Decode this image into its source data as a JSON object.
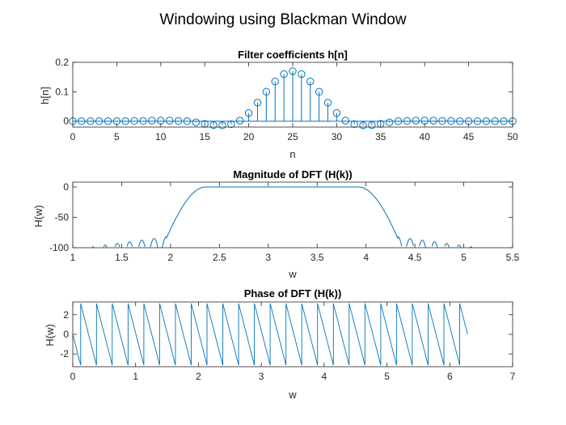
{
  "figure": {
    "title": "Windowing using Blackman Window"
  },
  "colors": {
    "series": "#0072bd",
    "axis": "#262626",
    "background": "#ffffff"
  },
  "chart_data": [
    {
      "type": "stem",
      "title": "Filter coefficients h[n]",
      "xlabel": "n",
      "ylabel": "h[n]",
      "xlim": [
        0,
        50
      ],
      "ylim": [
        -0.02,
        0.2
      ],
      "xticks": [
        0,
        5,
        10,
        15,
        20,
        25,
        30,
        35,
        40,
        45,
        50
      ],
      "yticks": [
        0,
        0.1,
        0.2
      ],
      "ytick_labels": [
        "0",
        "0.1",
        "0.2"
      ],
      "x": [
        0,
        1,
        2,
        3,
        4,
        5,
        6,
        7,
        8,
        9,
        10,
        11,
        12,
        13,
        14,
        15,
        16,
        17,
        18,
        19,
        20,
        21,
        22,
        23,
        24,
        25,
        26,
        27,
        28,
        29,
        30,
        31,
        32,
        33,
        34,
        35,
        36,
        37,
        38,
        39,
        40,
        41,
        42,
        43,
        44,
        45,
        46,
        47,
        48,
        49,
        50
      ],
      "values": [
        0,
        0,
        0,
        0,
        0,
        0,
        0,
        0.001,
        0.001,
        0.002,
        0.002,
        0.002,
        0.001,
        0,
        -0.004,
        -0.009,
        -0.013,
        -0.014,
        -0.01,
        0.002,
        0.028,
        0.063,
        0.1,
        0.135,
        0.16,
        0.17,
        0.16,
        0.135,
        0.1,
        0.063,
        0.028,
        0.002,
        -0.01,
        -0.014,
        -0.013,
        -0.009,
        -0.004,
        0,
        0.001,
        0.002,
        0.002,
        0.002,
        0.001,
        0.001,
        0,
        0,
        0,
        0,
        0,
        0,
        0
      ]
    },
    {
      "type": "line",
      "title": "Magnitude of DFT (H(k))",
      "xlabel": "w",
      "ylabel": "H(w)",
      "xlim": [
        1,
        5.5
      ],
      "ylim": [
        -100,
        8
      ],
      "xticks": [
        1,
        1.5,
        2,
        2.5,
        3,
        3.5,
        4,
        4.5,
        5,
        5.5
      ],
      "yticks": [
        -100,
        -50,
        0
      ],
      "passband": [
        2.356,
        3.927
      ],
      "transition_width": 0.4
    },
    {
      "type": "line",
      "title": "Phase of DFT (H(k))",
      "xlabel": "w",
      "ylabel": "H(w)",
      "xlim": [
        0,
        7
      ],
      "ylim": [
        -3.3,
        3.3
      ],
      "xticks": [
        0,
        1,
        2,
        3,
        4,
        5,
        6,
        7
      ],
      "yticks": [
        -2,
        0,
        2
      ],
      "wmax": 6.2832
    }
  ]
}
